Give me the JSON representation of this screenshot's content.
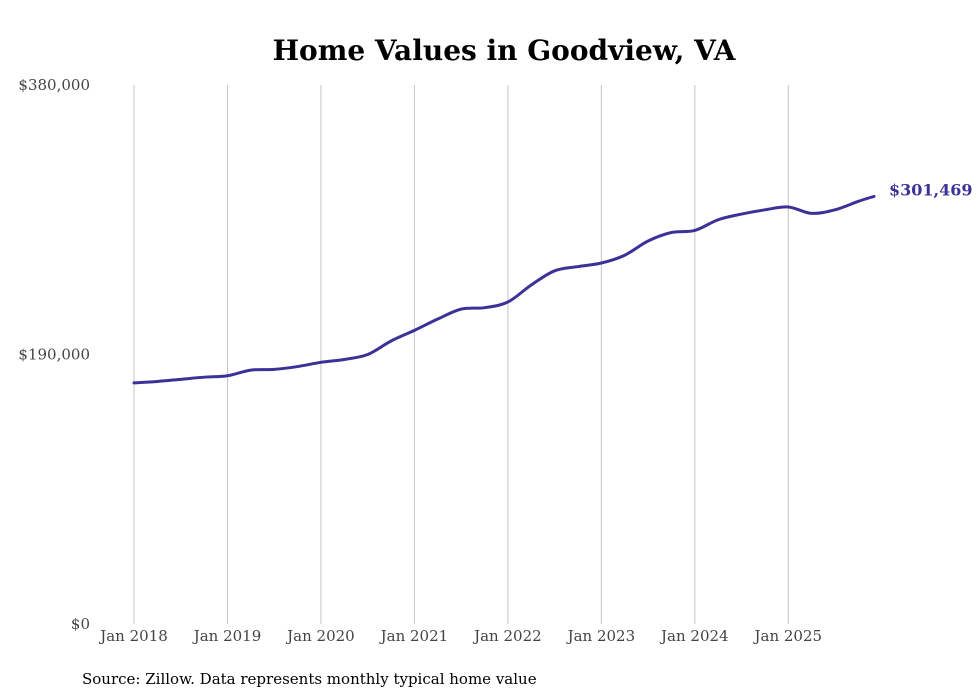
{
  "chart_data": {
    "type": "line",
    "title": "Home Values in Goodview, VA",
    "xlabel": "",
    "ylabel": "",
    "ylim": [
      0,
      380000
    ],
    "yticks": [
      {
        "value": 0,
        "label": "$0"
      },
      {
        "value": 190000,
        "label": "$190,000"
      },
      {
        "value": 380000,
        "label": "$380,000"
      }
    ],
    "xticks": [
      {
        "value": 2018,
        "label": "Jan 2018"
      },
      {
        "value": 2019,
        "label": "Jan 2019"
      },
      {
        "value": 2020,
        "label": "Jan 2020"
      },
      {
        "value": 2021,
        "label": "Jan 2021"
      },
      {
        "value": 2022,
        "label": "Jan 2022"
      },
      {
        "value": 2023,
        "label": "Jan 2023"
      },
      {
        "value": 2024,
        "label": "Jan 2024"
      },
      {
        "value": 2025,
        "label": "Jan 2025"
      }
    ],
    "xlim": [
      2018,
      2025.917
    ],
    "grid": "vertical",
    "series": [
      {
        "name": "Typical home value",
        "color": "#3a3297",
        "end_label": "$301,469",
        "x": [
          2018.0,
          2018.25,
          2018.5,
          2018.75,
          2019.0,
          2019.25,
          2019.5,
          2019.75,
          2020.0,
          2020.25,
          2020.5,
          2020.75,
          2021.0,
          2021.25,
          2021.5,
          2021.75,
          2022.0,
          2022.25,
          2022.5,
          2022.75,
          2023.0,
          2023.25,
          2023.5,
          2023.75,
          2024.0,
          2024.25,
          2024.5,
          2024.75,
          2025.0,
          2025.25,
          2025.5,
          2025.75,
          2025.917
        ],
        "values": [
          170000,
          171000,
          172500,
          174000,
          175000,
          179000,
          179500,
          181500,
          184500,
          186500,
          190000,
          199500,
          207000,
          215000,
          222000,
          223000,
          227000,
          239000,
          249000,
          252000,
          254500,
          260000,
          270000,
          276000,
          277500,
          285000,
          289000,
          292000,
          294000,
          289500,
          292000,
          298000,
          301469
        ]
      }
    ]
  },
  "footer": {
    "source": "Source: Zillow. Data represents monthly typical home value"
  }
}
